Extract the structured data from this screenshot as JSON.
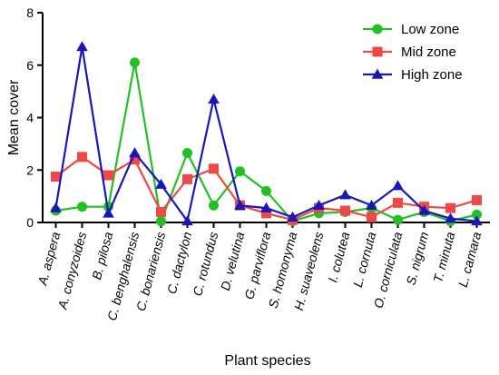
{
  "chart_data": {
    "type": "line",
    "title": "",
    "xlabel": "Plant species",
    "ylabel": "Mean cover",
    "ylim": [
      0,
      8
    ],
    "yticks": [
      0,
      2,
      4,
      6,
      8
    ],
    "grid": false,
    "legend_position": "top-right",
    "categories": [
      "A. aspera",
      "A. conyzoides",
      "B. pilosa",
      "C. benghalensis",
      "C. bonariensis",
      "C. dactylon",
      "C. rotundus",
      "D. velutina",
      "G. parviflora",
      "S. homonyma",
      "H. suaveolens",
      "I. colutea",
      "L. cornuta",
      "O. corniculata",
      "S. nigrum",
      "T. minuta",
      "L. camara"
    ],
    "series": [
      {
        "name": "Low zone",
        "color": "#22c022",
        "marker": "circle",
        "values": [
          0.45,
          0.6,
          0.6,
          6.1,
          0.05,
          2.65,
          0.65,
          1.95,
          1.2,
          0.05,
          0.35,
          0.4,
          0.55,
          0.1,
          0.4,
          0.05,
          0.3
        ]
      },
      {
        "name": "Mid zone",
        "color": "#f04848",
        "marker": "square",
        "values": [
          1.75,
          2.5,
          1.8,
          2.4,
          0.4,
          1.65,
          2.05,
          0.65,
          0.35,
          0.1,
          0.55,
          0.45,
          0.2,
          0.75,
          0.6,
          0.55,
          0.85
        ]
      },
      {
        "name": "High zone",
        "color": "#1818b8",
        "marker": "triangle",
        "values": [
          0.55,
          6.7,
          0.35,
          2.65,
          1.45,
          0.05,
          4.7,
          0.65,
          0.55,
          0.2,
          0.65,
          1.05,
          0.65,
          1.4,
          0.45,
          0.15,
          0.05
        ]
      }
    ]
  }
}
